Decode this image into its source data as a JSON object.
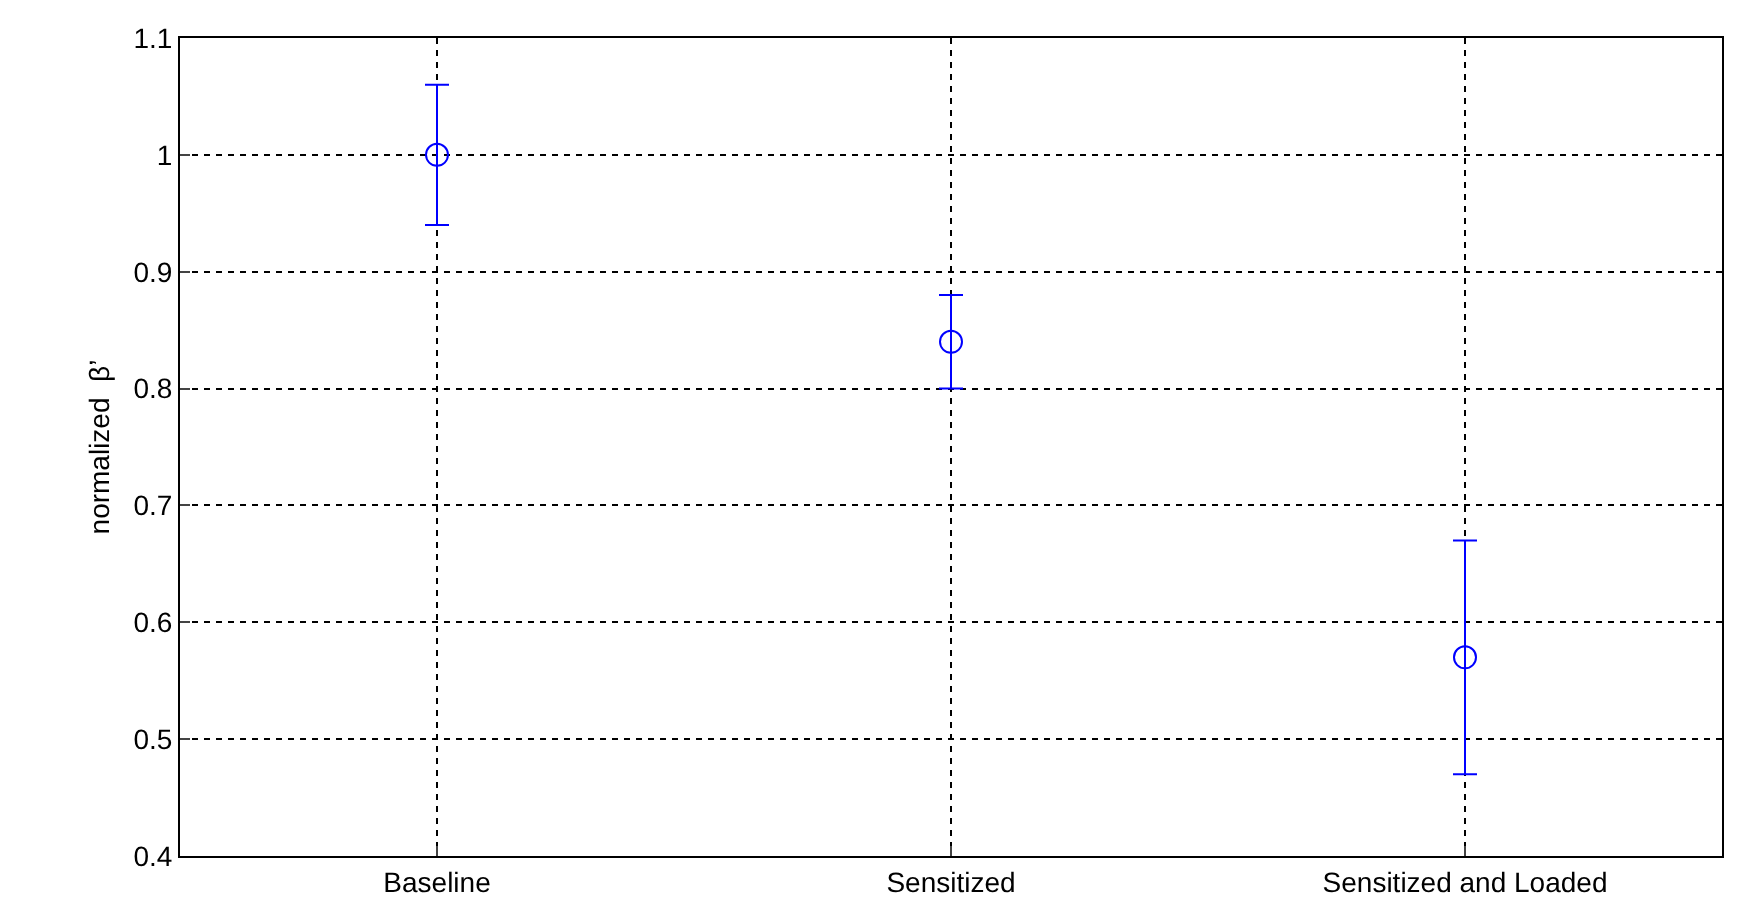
{
  "chart_data": {
    "type": "scatter",
    "ylabel": "normalized  β’",
    "categories": [
      "Baseline",
      "Sensitized",
      "Sensitized and Loaded"
    ],
    "series": [
      {
        "color": "#0000ff",
        "values": [
          1.0,
          0.84,
          0.57
        ],
        "errors": [
          0.06,
          0.04,
          0.1
        ]
      }
    ],
    "ylim": [
      0.4,
      1.1
    ],
    "yticks": [
      0.4,
      0.5,
      0.6,
      0.7,
      0.8,
      0.9,
      1,
      1.1
    ],
    "grid": true,
    "marker": "circle",
    "legend": false
  }
}
